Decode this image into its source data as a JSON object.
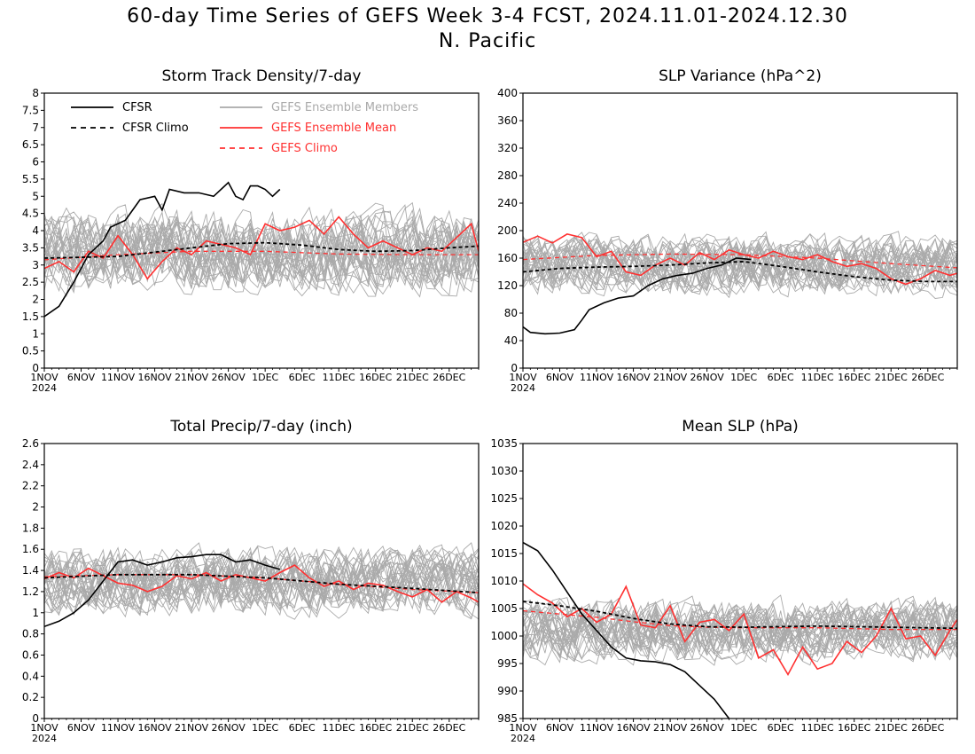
{
  "title_line1": "60-day Time Series of GEFS Week 3-4 FCST, 2024.11.01-2024.12.30",
  "title_line2": "N. Pacific",
  "colors": {
    "cfsr": "#000000",
    "cfsr_climo": "#000000",
    "members": "#aaaaaa",
    "ens_mean": "#ff3030",
    "gefs_climo": "#ff3030"
  },
  "legend": {
    "cfsr": "CFSR",
    "cfsr_climo": "CFSR Climo",
    "members": "GEFS Ensemble Members",
    "ens_mean": "GEFS Ensemble Mean",
    "gefs_climo": "GEFS Climo"
  },
  "chart_data": [
    {
      "type": "line",
      "title": "Storm Track Density/7-day",
      "x_ticks": [
        "1NOV",
        "6NOV",
        "11NOV",
        "16NOV",
        "21NOV",
        "26NOV",
        "1DEC",
        "6DEC",
        "11DEC",
        "16DEC",
        "21DEC",
        "26DEC"
      ],
      "x_year": "2024",
      "xlim": [
        "2024-11-01",
        "2024-12-30"
      ],
      "ylim": [
        0,
        8
      ],
      "y_ticks": [
        "0",
        "0.5",
        "1",
        "1.5",
        "2",
        "2.5",
        "3",
        "3.5",
        "4",
        "4.5",
        "5",
        "5.5",
        "6",
        "6.5",
        "7",
        "7.5",
        "8"
      ],
      "legend_shown": true,
      "members_band": {
        "center": 3.4,
        "spread": 1.5
      },
      "series": [
        {
          "name": "CFSR",
          "x": [
            "2024-11-01",
            "2024-11-03",
            "2024-11-05",
            "2024-11-07",
            "2024-11-09",
            "2024-11-10",
            "2024-11-12",
            "2024-11-14",
            "2024-11-16",
            "2024-11-17",
            "2024-11-18",
            "2024-11-20",
            "2024-11-22",
            "2024-11-24",
            "2024-11-26",
            "2024-11-27",
            "2024-11-28",
            "2024-11-29",
            "2024-11-30",
            "2024-12-01",
            "2024-12-02",
            "2024-12-03"
          ],
          "values": [
            1.5,
            1.8,
            2.5,
            3.3,
            3.7,
            4.1,
            4.3,
            4.9,
            5.0,
            4.6,
            5.2,
            5.1,
            5.1,
            5.0,
            5.4,
            5.0,
            4.9,
            5.3,
            5.3,
            5.2,
            5.0,
            5.2
          ]
        },
        {
          "name": "CFSR Climo",
          "x": [
            "2024-11-01",
            "2024-11-11",
            "2024-11-21",
            "2024-11-26",
            "2024-12-01",
            "2024-12-06",
            "2024-12-11",
            "2024-12-16",
            "2024-12-21",
            "2024-12-26",
            "2024-12-30"
          ],
          "values": [
            3.2,
            3.25,
            3.5,
            3.62,
            3.65,
            3.58,
            3.45,
            3.4,
            3.42,
            3.5,
            3.55
          ]
        },
        {
          "name": "GEFS Ensemble Mean",
          "x": [
            "2024-11-01",
            "2024-11-03",
            "2024-11-05",
            "2024-11-07",
            "2024-11-09",
            "2024-11-11",
            "2024-11-13",
            "2024-11-15",
            "2024-11-17",
            "2024-11-19",
            "2024-11-21",
            "2024-11-23",
            "2024-11-25",
            "2024-11-27",
            "2024-11-29",
            "2024-12-01",
            "2024-12-03",
            "2024-12-05",
            "2024-12-07",
            "2024-12-09",
            "2024-12-11",
            "2024-12-13",
            "2024-12-15",
            "2024-12-17",
            "2024-12-19",
            "2024-12-21",
            "2024-12-23",
            "2024-12-25",
            "2024-12-27",
            "2024-12-29",
            "2024-12-30"
          ],
          "values": [
            2.9,
            3.1,
            2.8,
            3.4,
            3.2,
            3.85,
            3.3,
            2.6,
            3.1,
            3.5,
            3.3,
            3.7,
            3.6,
            3.5,
            3.3,
            4.2,
            4.0,
            4.1,
            4.3,
            3.9,
            4.4,
            3.9,
            3.5,
            3.7,
            3.5,
            3.3,
            3.5,
            3.4,
            3.8,
            4.2,
            3.4
          ]
        },
        {
          "name": "GEFS Climo",
          "x": [
            "2024-11-01",
            "2024-11-11",
            "2024-11-21",
            "2024-12-01",
            "2024-12-11",
            "2024-12-21",
            "2024-12-30"
          ],
          "values": [
            3.15,
            3.3,
            3.4,
            3.4,
            3.32,
            3.3,
            3.3
          ]
        }
      ]
    },
    {
      "type": "line",
      "title": "SLP Variance (hPa^2)",
      "x_ticks": [
        "1NOV",
        "6NOV",
        "11NOV",
        "16NOV",
        "21NOV",
        "26NOV",
        "1DEC",
        "6DEC",
        "11DEC",
        "16DEC",
        "21DEC",
        "26DEC"
      ],
      "x_year": "2024",
      "xlim": [
        "2024-11-01",
        "2024-12-30"
      ],
      "ylim": [
        0,
        400
      ],
      "y_ticks": [
        "0",
        "40",
        "80",
        "120",
        "160",
        "200",
        "240",
        "280",
        "320",
        "360",
        "400"
      ],
      "legend_shown": false,
      "members_band": {
        "center": 150,
        "spread": 55
      },
      "series": [
        {
          "name": "CFSR",
          "x": [
            "2024-11-01",
            "2024-11-02",
            "2024-11-04",
            "2024-11-06",
            "2024-11-08",
            "2024-11-09",
            "2024-11-10",
            "2024-11-12",
            "2024-11-14",
            "2024-11-16",
            "2024-11-18",
            "2024-11-20",
            "2024-11-22",
            "2024-11-24",
            "2024-11-26",
            "2024-11-28",
            "2024-11-30",
            "2024-12-02"
          ],
          "values": [
            60,
            52,
            50,
            51,
            56,
            70,
            85,
            95,
            102,
            105,
            120,
            130,
            135,
            138,
            145,
            150,
            160,
            158
          ]
        },
        {
          "name": "CFSR Climo",
          "x": [
            "2024-11-01",
            "2024-11-06",
            "2024-11-11",
            "2024-11-16",
            "2024-11-21",
            "2024-11-26",
            "2024-12-01",
            "2024-12-06",
            "2024-12-11",
            "2024-12-16",
            "2024-12-21",
            "2024-12-26",
            "2024-12-30"
          ],
          "values": [
            140,
            145,
            147,
            148,
            150,
            153,
            155,
            148,
            140,
            133,
            128,
            126,
            126
          ]
        },
        {
          "name": "GEFS Ensemble Mean",
          "x": [
            "2024-11-01",
            "2024-11-03",
            "2024-11-05",
            "2024-11-07",
            "2024-11-09",
            "2024-11-11",
            "2024-11-13",
            "2024-11-15",
            "2024-11-17",
            "2024-11-19",
            "2024-11-21",
            "2024-11-23",
            "2024-11-25",
            "2024-11-27",
            "2024-11-29",
            "2024-12-01",
            "2024-12-03",
            "2024-12-05",
            "2024-12-07",
            "2024-12-09",
            "2024-12-11",
            "2024-12-13",
            "2024-12-15",
            "2024-12-17",
            "2024-12-19",
            "2024-12-21",
            "2024-12-23",
            "2024-12-25",
            "2024-12-27",
            "2024-12-29",
            "2024-12-30"
          ],
          "values": [
            183,
            192,
            182,
            195,
            190,
            162,
            170,
            140,
            135,
            150,
            160,
            150,
            168,
            158,
            172,
            165,
            160,
            170,
            162,
            158,
            165,
            155,
            148,
            152,
            145,
            130,
            122,
            130,
            142,
            135,
            138
          ]
        },
        {
          "name": "GEFS Climo",
          "x": [
            "2024-11-01",
            "2024-11-11",
            "2024-11-21",
            "2024-12-01",
            "2024-12-11",
            "2024-12-21",
            "2024-12-30"
          ],
          "values": [
            158,
            164,
            166,
            165,
            160,
            152,
            146
          ]
        }
      ]
    },
    {
      "type": "line",
      "title": "Total Precip/7-day (inch)",
      "x_ticks": [
        "1NOV",
        "6NOV",
        "11NOV",
        "16NOV",
        "21NOV",
        "26NOV",
        "1DEC",
        "6DEC",
        "11DEC",
        "16DEC",
        "21DEC",
        "26DEC"
      ],
      "x_year": "2024",
      "xlim": [
        "2024-11-01",
        "2024-12-30"
      ],
      "ylim": [
        0,
        2.6
      ],
      "y_ticks": [
        "0",
        "0.2",
        "0.4",
        "0.6",
        "0.8",
        "1",
        "1.2",
        "1.4",
        "1.6",
        "1.8",
        "2",
        "2.2",
        "2.4",
        "2.6"
      ],
      "legend_shown": false,
      "members_band": {
        "center": 1.3,
        "spread": 0.4
      },
      "series": [
        {
          "name": "CFSR",
          "x": [
            "2024-11-01",
            "2024-11-03",
            "2024-11-05",
            "2024-11-07",
            "2024-11-09",
            "2024-11-11",
            "2024-11-13",
            "2024-11-15",
            "2024-11-17",
            "2024-11-19",
            "2024-11-21",
            "2024-11-23",
            "2024-11-25",
            "2024-11-27",
            "2024-11-29",
            "2024-12-01",
            "2024-12-03"
          ],
          "values": [
            0.87,
            0.92,
            1.0,
            1.12,
            1.3,
            1.48,
            1.5,
            1.45,
            1.48,
            1.52,
            1.53,
            1.55,
            1.55,
            1.48,
            1.5,
            1.45,
            1.41
          ]
        },
        {
          "name": "CFSR Climo",
          "x": [
            "2024-11-01",
            "2024-11-11",
            "2024-11-21",
            "2024-12-01",
            "2024-12-11",
            "2024-12-21",
            "2024-12-30"
          ],
          "values": [
            1.33,
            1.36,
            1.36,
            1.33,
            1.27,
            1.23,
            1.19
          ]
        },
        {
          "name": "GEFS Ensemble Mean",
          "x": [
            "2024-11-01",
            "2024-11-03",
            "2024-11-05",
            "2024-11-07",
            "2024-11-09",
            "2024-11-11",
            "2024-11-13",
            "2024-11-15",
            "2024-11-17",
            "2024-11-19",
            "2024-11-21",
            "2024-11-23",
            "2024-11-25",
            "2024-11-27",
            "2024-11-29",
            "2024-12-01",
            "2024-12-03",
            "2024-12-05",
            "2024-12-07",
            "2024-12-09",
            "2024-12-11",
            "2024-12-13",
            "2024-12-15",
            "2024-12-17",
            "2024-12-19",
            "2024-12-21",
            "2024-12-23",
            "2024-12-25",
            "2024-12-27",
            "2024-12-29",
            "2024-12-30"
          ],
          "values": [
            1.32,
            1.38,
            1.33,
            1.42,
            1.35,
            1.28,
            1.26,
            1.2,
            1.25,
            1.35,
            1.32,
            1.38,
            1.3,
            1.36,
            1.33,
            1.3,
            1.38,
            1.45,
            1.33,
            1.25,
            1.3,
            1.22,
            1.28,
            1.26,
            1.2,
            1.15,
            1.22,
            1.1,
            1.2,
            1.14,
            1.1
          ]
        },
        {
          "name": "GEFS Climo",
          "x": [
            "2024-11-01",
            "2024-11-11",
            "2024-11-21",
            "2024-12-01",
            "2024-12-11",
            "2024-12-21",
            "2024-12-30"
          ],
          "values": [
            1.34,
            1.36,
            1.36,
            1.33,
            1.27,
            1.22,
            1.19
          ]
        }
      ]
    },
    {
      "type": "line",
      "title": "Mean SLP (hPa)",
      "x_ticks": [
        "1NOV",
        "6NOV",
        "11NOV",
        "16NOV",
        "21NOV",
        "26NOV",
        "1DEC",
        "6DEC",
        "11DEC",
        "16DEC",
        "21DEC",
        "26DEC"
      ],
      "x_year": "2024",
      "xlim": [
        "2024-11-01",
        "2024-12-30"
      ],
      "ylim": [
        985,
        1035
      ],
      "y_ticks": [
        "985",
        "990",
        "995",
        "1000",
        "1005",
        "1010",
        "1015",
        "1020",
        "1025",
        "1030",
        "1035"
      ],
      "legend_shown": false,
      "members_band": {
        "center": 1001,
        "spread": 7
      },
      "series": [
        {
          "name": "CFSR",
          "x": [
            "2024-11-01",
            "2024-11-03",
            "2024-11-05",
            "2024-11-07",
            "2024-11-09",
            "2024-11-11",
            "2024-11-13",
            "2024-11-15",
            "2024-11-17",
            "2024-11-19",
            "2024-11-21",
            "2024-11-23",
            "2024-11-25",
            "2024-11-27",
            "2024-11-29"
          ],
          "values": [
            1017,
            1015.5,
            1012,
            1008,
            1004,
            1001,
            998,
            996,
            995.5,
            995.3,
            994.8,
            993.5,
            991,
            988.5,
            985
          ]
        },
        {
          "name": "CFSR Climo",
          "x": [
            "2024-11-01",
            "2024-11-06",
            "2024-11-11",
            "2024-11-16",
            "2024-11-21",
            "2024-11-26",
            "2024-12-01",
            "2024-12-11",
            "2024-12-21",
            "2024-12-30"
          ],
          "values": [
            1006.3,
            1005.5,
            1004.5,
            1003.2,
            1002.2,
            1001.7,
            1001.6,
            1001.8,
            1001.6,
            1001.4
          ]
        },
        {
          "name": "GEFS Ensemble Mean",
          "x": [
            "2024-11-01",
            "2024-11-03",
            "2024-11-05",
            "2024-11-07",
            "2024-11-09",
            "2024-11-11",
            "2024-11-13",
            "2024-11-15",
            "2024-11-17",
            "2024-11-19",
            "2024-11-21",
            "2024-11-23",
            "2024-11-25",
            "2024-11-27",
            "2024-11-29",
            "2024-12-01",
            "2024-12-03",
            "2024-12-05",
            "2024-12-07",
            "2024-12-09",
            "2024-12-11",
            "2024-12-13",
            "2024-12-15",
            "2024-12-17",
            "2024-12-19",
            "2024-12-21",
            "2024-12-23",
            "2024-12-25",
            "2024-12-27",
            "2024-12-29",
            "2024-12-30"
          ],
          "values": [
            1009.5,
            1007.5,
            1006,
            1003.5,
            1005,
            1002.5,
            1004,
            1009,
            1002,
            1001.5,
            1005.5,
            999,
            1002.5,
            1003,
            1001,
            1004,
            996,
            997.5,
            993,
            998,
            994,
            995,
            999,
            997,
            1000,
            1005,
            999.5,
            1000,
            996.5,
            1001,
            1003
          ]
        },
        {
          "name": "GEFS Climo",
          "x": [
            "2024-11-01",
            "2024-11-06",
            "2024-11-11",
            "2024-11-16",
            "2024-11-21",
            "2024-11-26",
            "2024-12-01",
            "2024-12-11",
            "2024-12-21",
            "2024-12-30"
          ],
          "values": [
            1004.6,
            1004.0,
            1003.4,
            1002.6,
            1001.9,
            1001.6,
            1001.5,
            1001.5,
            1001.2,
            1001.2
          ]
        }
      ]
    }
  ]
}
